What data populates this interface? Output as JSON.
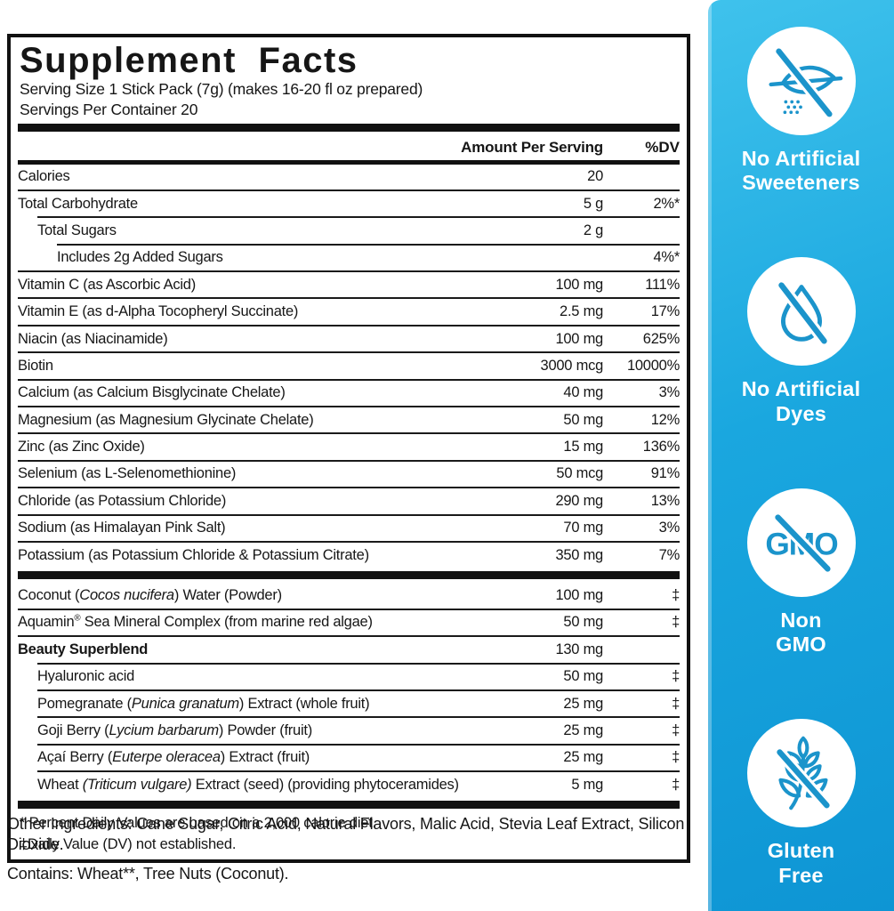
{
  "panel": {
    "title": "Supplement Facts",
    "serving_size": "Serving Size 1 Stick Pack (7g) (makes 16-20 fl oz prepared)",
    "servings_per_container": "Servings Per Container 20",
    "columns": {
      "amount": "Amount Per Serving",
      "dv": "%DV"
    },
    "sections": [
      {
        "rows": [
          {
            "parts": [
              {
                "t": "Calories"
              }
            ],
            "amount": "20",
            "dv": "",
            "indent": 0
          },
          {
            "parts": [
              {
                "t": "Total Carbohydrate"
              }
            ],
            "amount": "5 g",
            "dv": "2%*",
            "indent": 0
          },
          {
            "parts": [
              {
                "t": "Total Sugars"
              }
            ],
            "amount": "2 g",
            "dv": "",
            "indent": 1
          },
          {
            "parts": [
              {
                "t": "Includes 2g Added Sugars"
              }
            ],
            "amount": "",
            "dv": "4%*",
            "indent": 2
          },
          {
            "parts": [
              {
                "t": "Vitamin C (as Ascorbic Acid)"
              }
            ],
            "amount": "100 mg",
            "dv": "111%",
            "indent": 0
          },
          {
            "parts": [
              {
                "t": "Vitamin E (as d-Alpha Tocopheryl Succinate)"
              }
            ],
            "amount": "2.5 mg",
            "dv": "17%",
            "indent": 0
          },
          {
            "parts": [
              {
                "t": "Niacin (as Niacinamide)"
              }
            ],
            "amount": "100 mg",
            "dv": "625%",
            "indent": 0
          },
          {
            "parts": [
              {
                "t": "Biotin"
              }
            ],
            "amount": "3000 mcg",
            "dv": "10000%",
            "indent": 0
          },
          {
            "parts": [
              {
                "t": "Calcium (as Calcium Bisglycinate Chelate)"
              }
            ],
            "amount": "40 mg",
            "dv": "3%",
            "indent": 0
          },
          {
            "parts": [
              {
                "t": "Magnesium (as Magnesium Glycinate Chelate)"
              }
            ],
            "amount": "50 mg",
            "dv": "12%",
            "indent": 0
          },
          {
            "parts": [
              {
                "t": "Zinc (as Zinc Oxide)"
              }
            ],
            "amount": "15 mg",
            "dv": "136%",
            "indent": 0
          },
          {
            "parts": [
              {
                "t": "Selenium (as L-Selenomethionine)"
              }
            ],
            "amount": "50 mcg",
            "dv": "91%",
            "indent": 0
          },
          {
            "parts": [
              {
                "t": "Chloride (as Potassium Chloride)"
              }
            ],
            "amount": "290 mg",
            "dv": "13%",
            "indent": 0
          },
          {
            "parts": [
              {
                "t": "Sodium (as Himalayan Pink Salt)"
              }
            ],
            "amount": "70 mg",
            "dv": "3%",
            "indent": 0
          },
          {
            "parts": [
              {
                "t": "Potassium (as Potassium Chloride & Potassium Citrate)"
              }
            ],
            "amount": "350 mg",
            "dv": "7%",
            "indent": 0
          }
        ]
      },
      {
        "rows": [
          {
            "parts": [
              {
                "t": "Coconut ("
              },
              {
                "t": "Cocos nucifera",
                "i": true
              },
              {
                "t": ") Water (Powder)"
              }
            ],
            "amount": "100 mg",
            "dv": "‡",
            "indent": 0
          },
          {
            "parts": [
              {
                "t": "Aquamin"
              },
              {
                "t": "®",
                "sup": true
              },
              {
                "t": " Sea Mineral Complex (from marine red algae)"
              }
            ],
            "amount": "50 mg",
            "dv": "‡",
            "indent": 0
          },
          {
            "parts": [
              {
                "t": "Beauty Superblend"
              }
            ],
            "amount": "130 mg",
            "dv": "",
            "indent": 0,
            "bold": true
          },
          {
            "parts": [
              {
                "t": "Hyaluronic acid"
              }
            ],
            "amount": "50 mg",
            "dv": "‡",
            "indent": 1
          },
          {
            "parts": [
              {
                "t": "Pomegranate ("
              },
              {
                "t": "Punica granatum",
                "i": true
              },
              {
                "t": ") Extract (whole fruit)"
              }
            ],
            "amount": "25 mg",
            "dv": "‡",
            "indent": 1
          },
          {
            "parts": [
              {
                "t": "Goji Berry ("
              },
              {
                "t": "Lycium barbarum",
                "i": true
              },
              {
                "t": ") Powder (fruit)"
              }
            ],
            "amount": "25 mg",
            "dv": "‡",
            "indent": 1
          },
          {
            "parts": [
              {
                "t": "Açaí Berry ("
              },
              {
                "t": "Euterpe oleracea",
                "i": true
              },
              {
                "t": ") Extract (fruit)"
              }
            ],
            "amount": "25 mg",
            "dv": "‡",
            "indent": 1
          },
          {
            "parts": [
              {
                "t": "Wheat "
              },
              {
                "t": "(Triticum vulgare)",
                "i": true
              },
              {
                "t": " Extract (seed) (providing phytoceramides)"
              }
            ],
            "amount": "5 mg",
            "dv": "‡",
            "indent": 1
          }
        ]
      }
    ],
    "footnotes": [
      "* Percent Daily Values are based on a 2,000 calorie diet.",
      "‡Daily Value (DV) not established."
    ]
  },
  "below": {
    "other_ingredients": "Other Ingredients: Cane Sugar, Citric Acid, Natural Flavors, Malic Acid, Stevia Leaf Extract, Silicon Dioxide.",
    "contains": "Contains: Wheat**, Tree Nuts (Coconut)."
  },
  "sidebar": {
    "background_top": "#3fc2ec",
    "background_bottom": "#0e95d4",
    "icon_color": "#1b94cb",
    "badges": [
      {
        "icon": "no-artificial-sweeteners-icon",
        "lines": [
          "No Artificial",
          "Sweeteners"
        ]
      },
      {
        "icon": "no-artificial-dyes-icon",
        "lines": [
          "No Artificial",
          "Dyes"
        ]
      },
      {
        "icon": "non-gmo-icon",
        "lines": [
          "Non",
          "GMO"
        ]
      },
      {
        "icon": "gluten-free-icon",
        "lines": [
          "Gluten",
          "Free"
        ]
      }
    ]
  }
}
